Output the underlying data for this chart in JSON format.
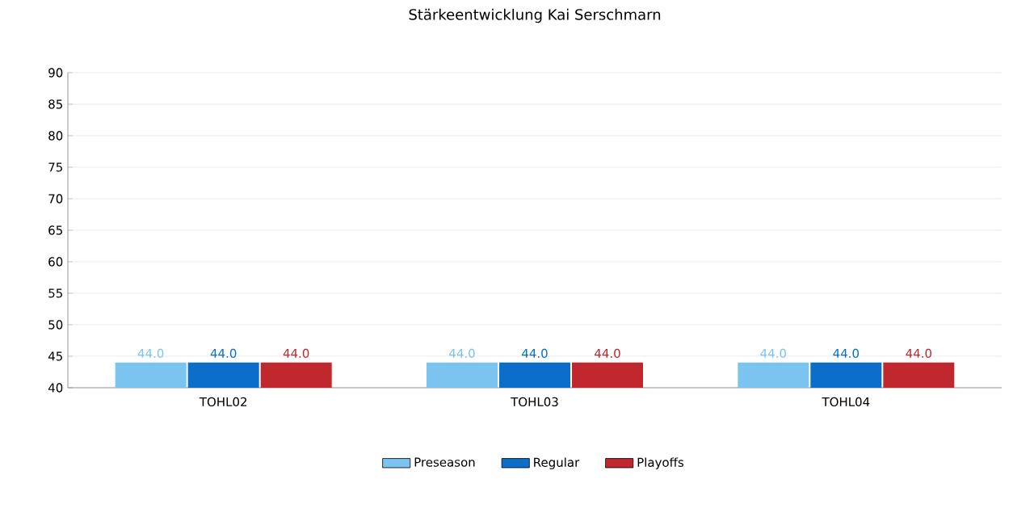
{
  "chart_data": {
    "type": "bar",
    "title": "Stärkeentwicklung Kai Serschmarn",
    "categories": [
      "TOHL02",
      "TOHL03",
      "TOHL04"
    ],
    "series": [
      {
        "name": "Preseason",
        "color": "#7cc4f0",
        "values": [
          44.0,
          44.0,
          44.0
        ],
        "value_labels": [
          "44.0",
          "44.0",
          "44.0"
        ]
      },
      {
        "name": "Regular",
        "color": "#0b6ec8",
        "values": [
          44.0,
          44.0,
          44.0
        ],
        "value_labels": [
          "44.0",
          "44.0",
          "44.0"
        ]
      },
      {
        "name": "Playoffs",
        "color": "#c0282d",
        "values": [
          44.0,
          44.0,
          44.0
        ],
        "value_labels": [
          "44.0",
          "44.0",
          "44.0"
        ]
      }
    ],
    "ylim": [
      40,
      90
    ],
    "yticks": [
      40,
      45,
      50,
      55,
      60,
      65,
      70,
      75,
      80,
      85,
      90
    ],
    "grid": "y",
    "legend": "bottom"
  }
}
